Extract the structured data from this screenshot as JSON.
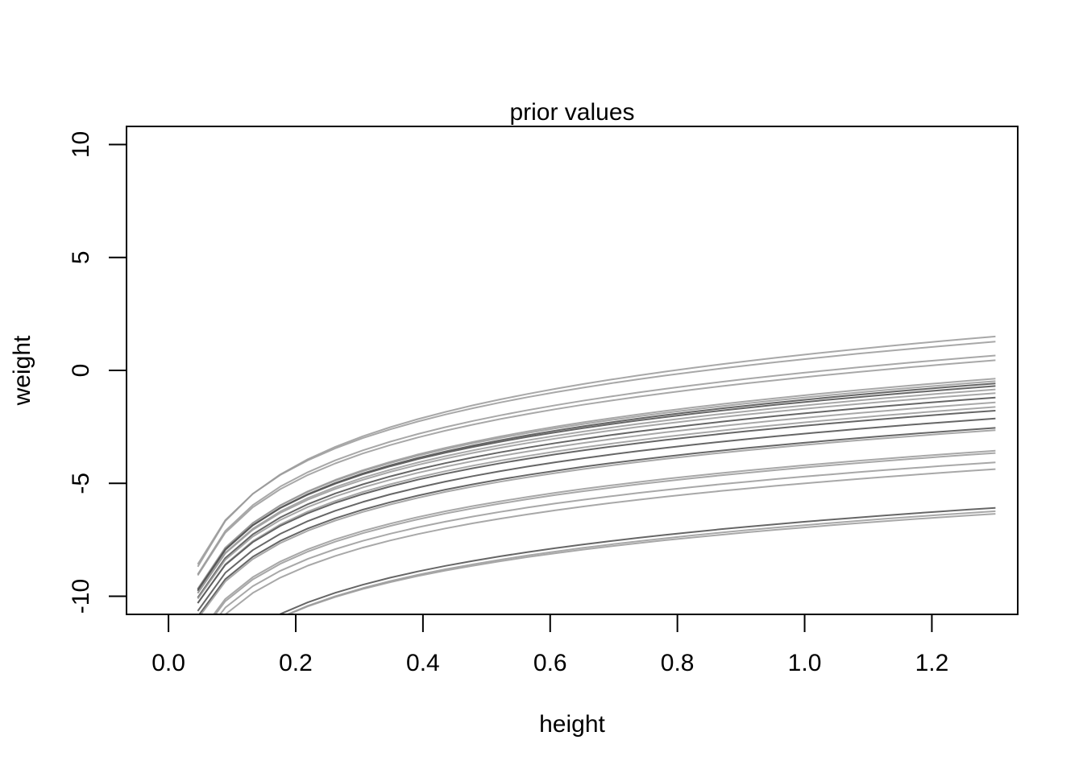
{
  "chart_data": {
    "type": "line",
    "title": "prior values",
    "xlabel": "height",
    "ylabel": "weight",
    "xlim": [
      -0.066,
      1.335
    ],
    "ylim": [
      -10.8,
      10.8
    ],
    "x_ticks": [
      0.0,
      0.2,
      0.4,
      0.6,
      0.8,
      1.0,
      1.2
    ],
    "x_tick_labels": [
      "0.0",
      "0.2",
      "0.4",
      "0.6",
      "0.8",
      "1.0",
      "1.2"
    ],
    "y_ticks": [
      -10,
      -5,
      0,
      5,
      10
    ],
    "y_tick_labels": [
      "-10",
      "-5",
      "0",
      "5",
      "10"
    ],
    "grid": false,
    "legend": "none",
    "curve_form": "weight = a + b * log(height)",
    "x_range": [
      0.046,
      1.3
    ],
    "line_colors": {
      "light": "#999999",
      "dark": "#555555"
    },
    "series": [
      {
        "a": 0.7,
        "b": 3.05,
        "shade": "light"
      },
      {
        "a": 0.5,
        "b": 2.95,
        "shade": "light"
      },
      {
        "a": -0.1,
        "b": 2.9,
        "shade": "light"
      },
      {
        "a": -0.3,
        "b": 2.85,
        "shade": "light"
      },
      {
        "a": -1.1,
        "b": 2.8,
        "shade": "light"
      },
      {
        "a": -1.2,
        "b": 2.75,
        "shade": "light"
      },
      {
        "a": -1.3,
        "b": 2.75,
        "shade": "dark"
      },
      {
        "a": -1.4,
        "b": 2.7,
        "shade": "dark"
      },
      {
        "a": -1.55,
        "b": 2.7,
        "shade": "light"
      },
      {
        "a": -1.7,
        "b": 2.65,
        "shade": "light"
      },
      {
        "a": -1.9,
        "b": 2.65,
        "shade": "dark"
      },
      {
        "a": -2.1,
        "b": 2.6,
        "shade": "light"
      },
      {
        "a": -2.3,
        "b": 2.6,
        "shade": "light"
      },
      {
        "a": -2.45,
        "b": 2.55,
        "shade": "dark"
      },
      {
        "a": -2.8,
        "b": 2.55,
        "shade": "dark"
      },
      {
        "a": -3.2,
        "b": 2.5,
        "shade": "dark"
      },
      {
        "a": -3.3,
        "b": 2.5,
        "shade": "light"
      },
      {
        "a": -4.2,
        "b": 2.45,
        "shade": "light"
      },
      {
        "a": -4.3,
        "b": 2.45,
        "shade": "light"
      },
      {
        "a": -4.7,
        "b": 2.4,
        "shade": "light"
      },
      {
        "a": -5.0,
        "b": 2.4,
        "shade": "light"
      },
      {
        "a": -6.7,
        "b": 2.35,
        "shade": "dark"
      },
      {
        "a": -6.85,
        "b": 2.35,
        "shade": "light"
      },
      {
        "a": -6.95,
        "b": 2.3,
        "shade": "light"
      }
    ]
  }
}
